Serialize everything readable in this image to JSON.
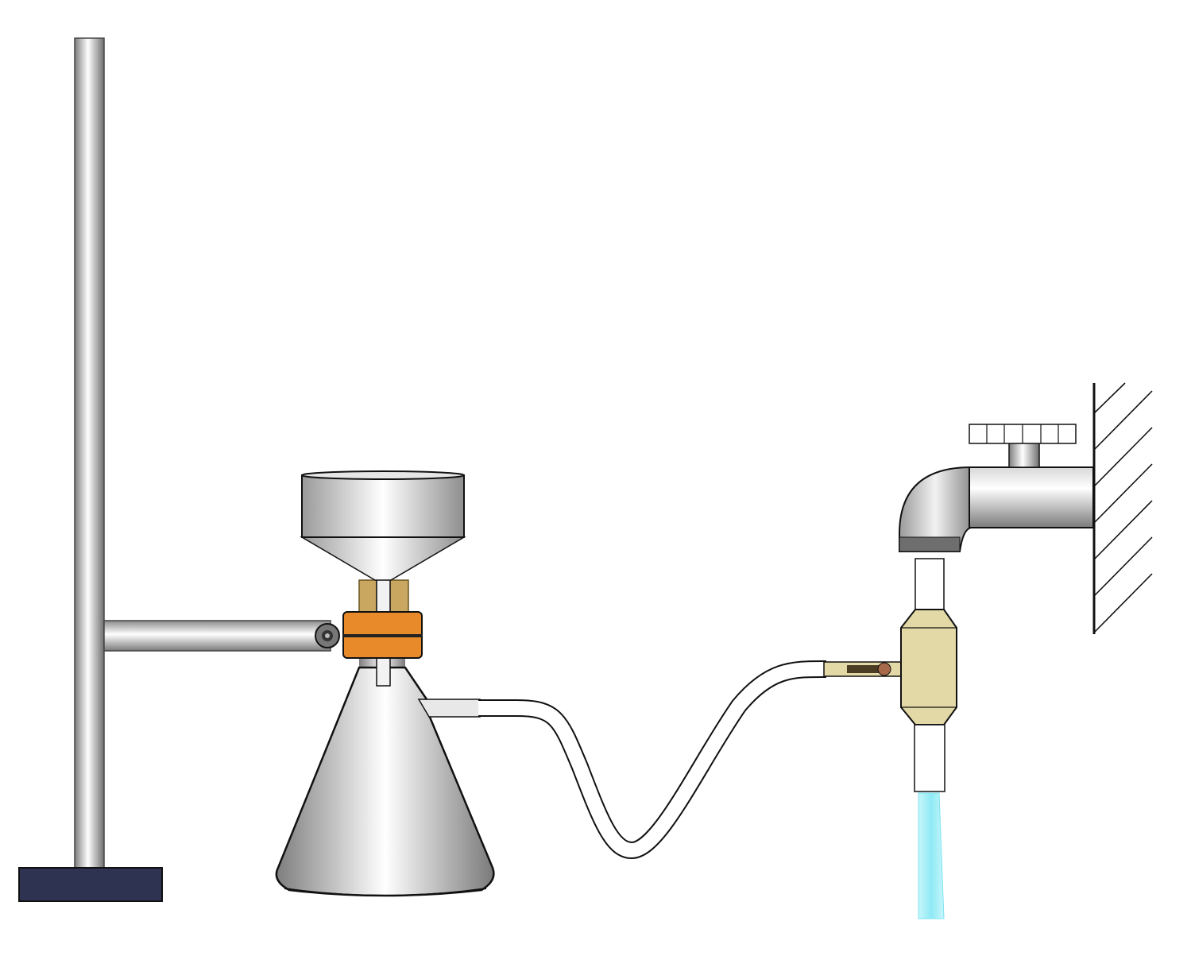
{
  "diagram": {
    "components": {
      "retort_stand": "retort-stand",
      "buchner_funnel": "buchner-funnel",
      "filter_flask": "filter-flask",
      "vacuum_tubing": "rubber-tubing",
      "water_aspirator": "water-aspirator",
      "water_tap": "water-tap",
      "wall": "wall-hatching",
      "water_stream": "water-stream"
    },
    "colors": {
      "metal_light": "#f4f4f4",
      "metal_dark": "#8a8a8a",
      "clamp_orange": "#e8892a",
      "stopper_tan": "#c9a760",
      "aspirator_beige": "#e3d9a6",
      "base_navy": "#2e3352",
      "water_cyan": "#8eeaf5",
      "outline": "#111111"
    }
  }
}
